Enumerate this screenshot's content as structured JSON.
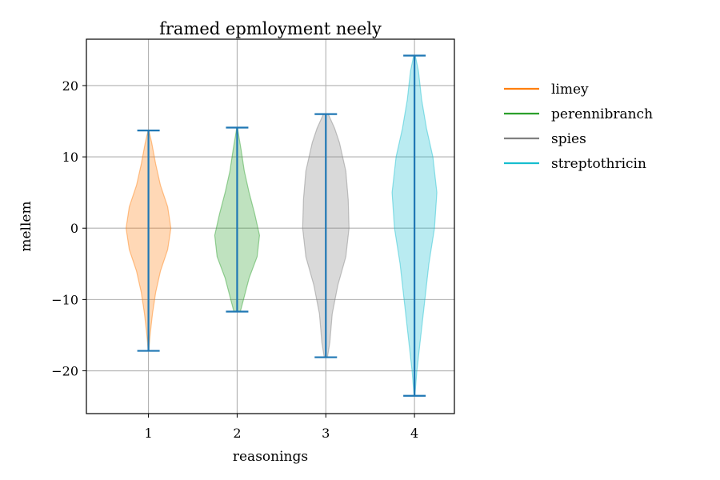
{
  "chart_data": {
    "type": "violin",
    "title": "framed epmloyment neely",
    "xlabel": "reasonings",
    "ylabel": "mellem",
    "x_ticks": [
      1,
      2,
      3,
      4
    ],
    "y_ticks": [
      -20,
      -10,
      0,
      10,
      20
    ],
    "y_tick_labels": [
      "−20",
      "−10",
      "0",
      "10",
      "20"
    ],
    "xlim": [
      0.3,
      4.45
    ],
    "ylim": [
      -26,
      26.5
    ],
    "grid": true,
    "legend_position": "right-outside",
    "series": [
      {
        "name": "limey",
        "position": 1,
        "color": "#ff7f0e",
        "min": -17.2,
        "max": 13.7,
        "profile": [
          [
            -17.2,
            0.3
          ],
          [
            -15,
            2
          ],
          [
            -12,
            5
          ],
          [
            -9,
            9
          ],
          [
            -6,
            15
          ],
          [
            -3,
            24
          ],
          [
            0,
            28
          ],
          [
            3,
            24
          ],
          [
            6,
            15
          ],
          [
            9,
            9
          ],
          [
            12,
            4
          ],
          [
            13.7,
            0.5
          ]
        ]
      },
      {
        "name": "perennibranch",
        "position": 2,
        "color": "#2ca02c",
        "min": -11.7,
        "max": 14.1,
        "profile": [
          [
            -11.7,
            4
          ],
          [
            -10,
            8
          ],
          [
            -7,
            15
          ],
          [
            -4,
            25
          ],
          [
            -1,
            28
          ],
          [
            2,
            22
          ],
          [
            5,
            15
          ],
          [
            8,
            9
          ],
          [
            11,
            5
          ],
          [
            13,
            2
          ],
          [
            14.1,
            0.5
          ]
        ]
      },
      {
        "name": "spies",
        "position": 3,
        "color": "#808080",
        "min": -18.1,
        "max": 16,
        "profile": [
          [
            -18.1,
            2
          ],
          [
            -16,
            5
          ],
          [
            -12,
            8
          ],
          [
            -8,
            15
          ],
          [
            -4,
            25
          ],
          [
            0,
            29
          ],
          [
            4,
            28
          ],
          [
            8,
            25
          ],
          [
            12,
            17
          ],
          [
            14,
            11
          ],
          [
            16,
            3
          ]
        ]
      },
      {
        "name": "streptothricin",
        "position": 4,
        "color": "#17becf",
        "min": -23.5,
        "max": 24.2,
        "profile": [
          [
            -23.5,
            0.5
          ],
          [
            -20,
            3
          ],
          [
            -15,
            8
          ],
          [
            -10,
            13
          ],
          [
            -5,
            18
          ],
          [
            0,
            25
          ],
          [
            5,
            28
          ],
          [
            10,
            23
          ],
          [
            14,
            15
          ],
          [
            18,
            9
          ],
          [
            22,
            5
          ],
          [
            24.2,
            1
          ]
        ]
      }
    ],
    "stat_line_color": "#1f77b4"
  }
}
